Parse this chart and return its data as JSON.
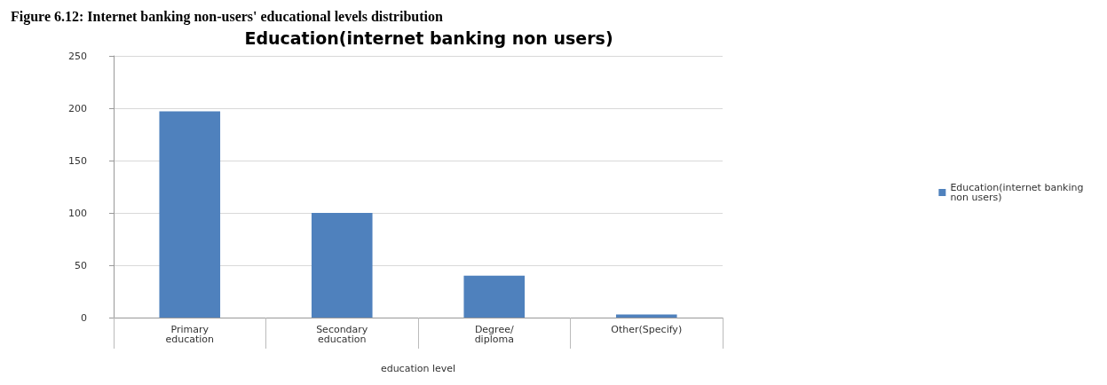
{
  "chart_data": {
    "type": "bar",
    "title": "Education(internet banking non users)",
    "xlabel": "education level",
    "annotations": [
      "Figure 6.12: Internet banking non-users' educational levels distribution"
    ],
    "categories": [
      "Primary\neducation",
      "Secondary\neducation",
      "Degree/\ndiploma",
      "Other(Specify)"
    ],
    "series": [
      {
        "name": "Education(internet banking non users)",
        "color": "#4f81bd",
        "values": [
          197,
          100,
          40,
          3
        ]
      }
    ],
    "ylim": [
      0,
      250
    ],
    "yticks": [
      0,
      50,
      100,
      150,
      200,
      250
    ],
    "grid": "y",
    "legend": "right"
  }
}
